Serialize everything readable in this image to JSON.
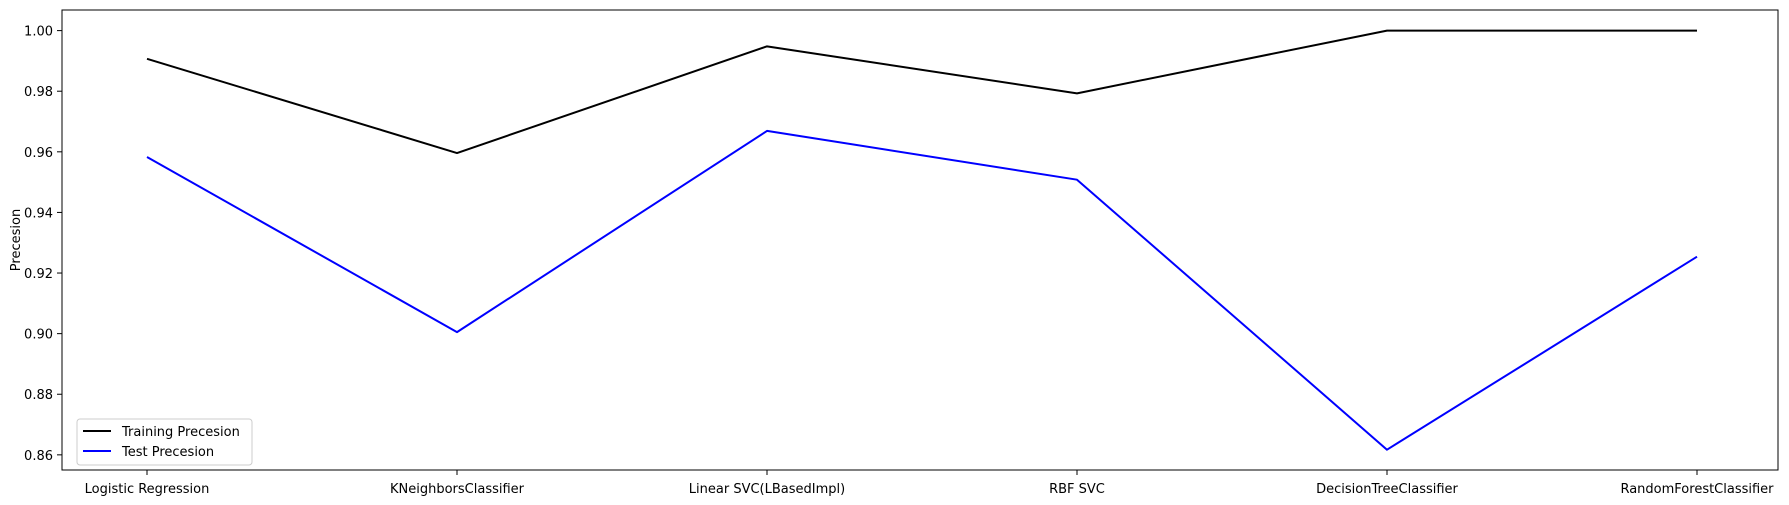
{
  "chart_data": {
    "type": "line",
    "title": "",
    "xlabel": "",
    "ylabel": "Precesion",
    "categories": [
      "Logistic Regression",
      "KNeighborsClassifier",
      "Linear SVC(LBasedImpl)",
      "RBF SVC",
      "DecisionTreeClassifier",
      "RandomForestClassifier"
    ],
    "series": [
      {
        "name": "Training Precesion",
        "color": "#000000",
        "values": [
          0.9907,
          0.9596,
          0.9948,
          0.9793,
          1.0,
          1.0
        ]
      },
      {
        "name": "Test Precesion",
        "color": "#0000ff",
        "values": [
          0.9583,
          0.9005,
          0.9669,
          0.9508,
          0.8617,
          0.9254
        ]
      }
    ],
    "ylim": [
      0.855,
      1.0068
    ],
    "yticks": [
      0.86,
      0.88,
      0.9,
      0.92,
      0.94,
      0.96,
      0.98,
      1.0
    ],
    "ytick_labels": [
      "0.86",
      "0.88",
      "0.90",
      "0.92",
      "0.94",
      "0.96",
      "0.98",
      "1.00"
    ],
    "grid": false,
    "legend_position": "lower-left"
  }
}
